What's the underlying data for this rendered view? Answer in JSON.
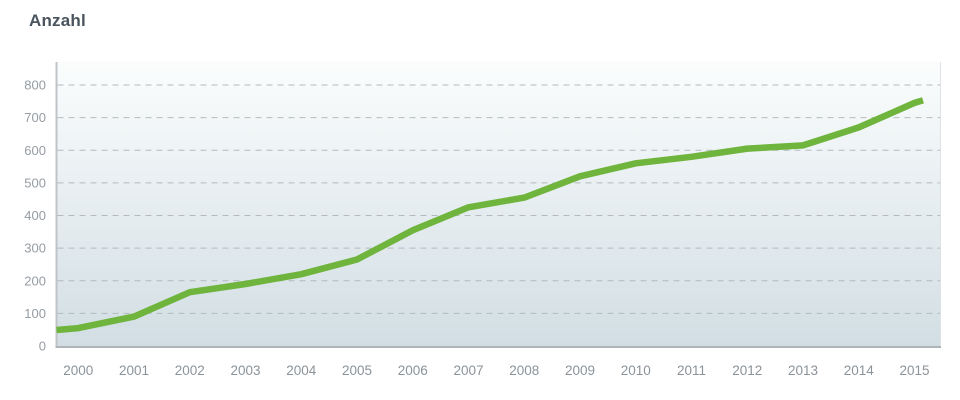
{
  "chart_data": {
    "type": "line",
    "title": "Anzahl",
    "categories": [
      "2000",
      "2001",
      "2002",
      "2003",
      "2004",
      "2005",
      "2006",
      "2007",
      "2008",
      "2009",
      "2010",
      "2011",
      "2012",
      "2013",
      "2014",
      "2015"
    ],
    "values": [
      55,
      90,
      165,
      190,
      220,
      265,
      355,
      425,
      455,
      520,
      560,
      580,
      605,
      615,
      670,
      745
    ],
    "xlabel": "",
    "ylabel": "Anzahl",
    "ylim": [
      0,
      875
    ],
    "yticks": [
      0,
      100,
      200,
      300,
      400,
      500,
      600,
      700,
      800
    ],
    "grid": "horizontal-dashed",
    "legend": "none",
    "line_color": "#6fb43c",
    "plot_bg_gradient_top": "#fbfdfd",
    "plot_bg_gradient_bottom": "#d2dee4",
    "title_color": "#4a545e",
    "axis_label_color": "#8b939a"
  }
}
